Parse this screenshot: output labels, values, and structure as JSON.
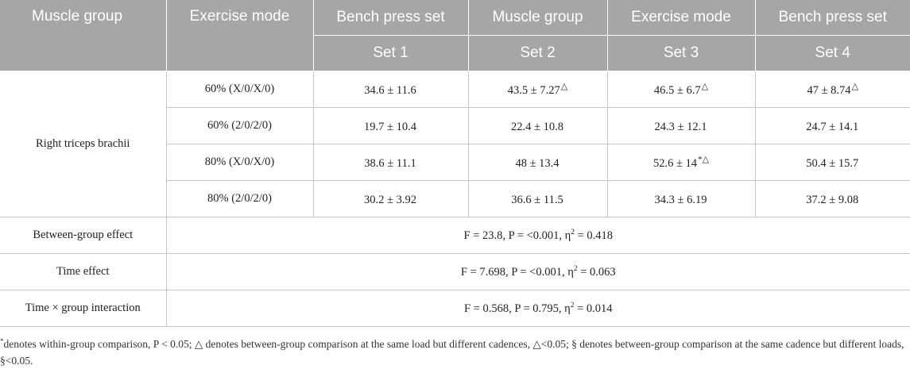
{
  "header": {
    "row1": [
      "Muscle group",
      "Exercise mode",
      "Bench press set",
      "Muscle group",
      "Exercise mode",
      "Bench press set"
    ],
    "row2": [
      "Set 1",
      "Set 2",
      "Set 3",
      "Set 4"
    ]
  },
  "muscle_group": "Right triceps brachii",
  "rows": [
    {
      "mode": "60% (X/0/X/0)",
      "cells": [
        {
          "v": "34.6 ± 11.6",
          "m": ""
        },
        {
          "v": "43.5 ± 7.27",
          "m": "△"
        },
        {
          "v": "46.5 ± 6.7",
          "m": "△"
        },
        {
          "v": "47 ± 8.74",
          "m": "△"
        }
      ]
    },
    {
      "mode": "60% (2/0/2/0)",
      "cells": [
        {
          "v": "19.7 ± 10.4",
          "m": ""
        },
        {
          "v": "22.4 ± 10.8",
          "m": ""
        },
        {
          "v": "24.3 ± 12.1",
          "m": ""
        },
        {
          "v": "24.7 ± 14.1",
          "m": ""
        }
      ]
    },
    {
      "mode": "80% (X/0/X/0)",
      "cells": [
        {
          "v": "38.6 ± 11.1",
          "m": ""
        },
        {
          "v": "48 ± 13.4",
          "m": ""
        },
        {
          "v": "52.6 ± 14",
          "m": "*△"
        },
        {
          "v": "50.4 ± 15.7",
          "m": ""
        }
      ]
    },
    {
      "mode": "80% (2/0/2/0)",
      "cells": [
        {
          "v": "30.2 ± 3.92",
          "m": ""
        },
        {
          "v": "36.6 ± 11.5",
          "m": ""
        },
        {
          "v": "34.3 ± 6.19",
          "m": ""
        },
        {
          "v": "37.2 ± 9.08",
          "m": ""
        }
      ]
    }
  ],
  "stats": [
    {
      "label": "Between-group effect",
      "pre": "F = 23.8, P = <0.001, η",
      "sup": "2",
      "post": " = 0.418"
    },
    {
      "label": "Time effect",
      "pre": "F = 7.698, P = <0.001, η",
      "sup": "2",
      "post": " = 0.063"
    },
    {
      "label": "Time × group interaction",
      "pre": "F = 0.568, P = 0.795, η",
      "sup": "2",
      "post": " = 0.014"
    }
  ],
  "footnote": {
    "mark": "*",
    "text": "denotes within-group comparison, P < 0.05; △ denotes between-group comparison at the same load but different cadences, △<0.05; § denotes between-group comparison at the same cadence but different loads, §<0.05."
  }
}
